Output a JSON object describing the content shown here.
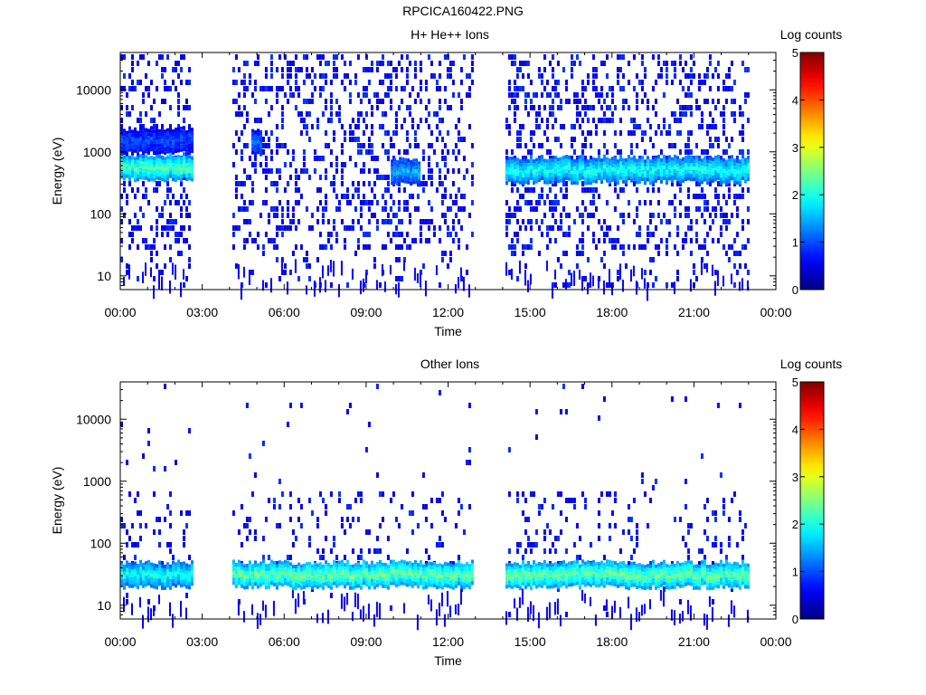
{
  "figure": {
    "title": "RPCICA160422.PNG"
  },
  "chart_data": [
    {
      "type": "heatmap",
      "title": "H+ He++ Ions",
      "xlabel": "Time",
      "ylabel": "Energy (eV)",
      "x_ticks": [
        "00:00",
        "03:00",
        "06:00",
        "09:00",
        "12:00",
        "15:00",
        "18:00",
        "21:00",
        "00:00"
      ],
      "xlim_hours": [
        0,
        24
      ],
      "y_scale": "log",
      "y_ticks": [
        10,
        100,
        1000,
        10000
      ],
      "y_tick_labels": [
        "10",
        "100",
        "1000",
        "10000"
      ],
      "ylim": [
        6,
        40000
      ],
      "colorbar": {
        "label": "Log counts",
        "range": [
          0,
          5
        ],
        "ticks": [
          "0",
          "1",
          "2",
          "3",
          "4",
          "5"
        ],
        "colormap": "jet"
      },
      "data_intervals_hours": [
        [
          0.0,
          2.6
        ],
        [
          4.1,
          12.9
        ],
        [
          14.1,
          23.0
        ]
      ],
      "features": [
        {
          "t_start": 0.0,
          "t_end": 2.6,
          "energy_center_ev": 600,
          "log_counts": 2.3
        },
        {
          "t_start": 0.0,
          "t_end": 2.6,
          "energy_center_ev": 1600,
          "log_counts": 1.0
        },
        {
          "t_start": 4.8,
          "t_end": 5.1,
          "energy_center_ev": 1450,
          "log_counts": 1.2
        },
        {
          "t_start": 9.9,
          "t_end": 10.9,
          "energy_center_ev": 500,
          "log_counts": 1.5
        },
        {
          "t_start": 14.1,
          "t_end": 23.0,
          "energy_center_ev": 550,
          "log_counts": 2.0
        }
      ],
      "grid": false,
      "legend": "colorbar-right"
    },
    {
      "type": "heatmap",
      "title": "Other Ions",
      "xlabel": "Time",
      "ylabel": "Energy (eV)",
      "x_ticks": [
        "00:00",
        "03:00",
        "06:00",
        "09:00",
        "12:00",
        "15:00",
        "18:00",
        "21:00",
        "00:00"
      ],
      "xlim_hours": [
        0,
        24
      ],
      "y_scale": "log",
      "y_ticks": [
        10,
        100,
        1000,
        10000
      ],
      "y_tick_labels": [
        "10",
        "100",
        "1000",
        "10000"
      ],
      "ylim": [
        6,
        40000
      ],
      "colorbar": {
        "label": "Log counts",
        "range": [
          0,
          5
        ],
        "ticks": [
          "0",
          "1",
          "2",
          "3",
          "4",
          "5"
        ],
        "colormap": "jet"
      },
      "data_intervals_hours": [
        [
          0.0,
          2.6
        ],
        [
          4.1,
          12.9
        ],
        [
          14.1,
          23.0
        ]
      ],
      "features": [
        {
          "t_start": 0.0,
          "t_end": 2.6,
          "energy_center_ev": 33,
          "log_counts": 2.0
        },
        {
          "t_start": 4.1,
          "t_end": 12.9,
          "energy_center_ev": 33,
          "log_counts": 2.4
        },
        {
          "t_start": 14.1,
          "t_end": 23.0,
          "energy_center_ev": 33,
          "log_counts": 2.4
        }
      ],
      "grid": false,
      "legend": "colorbar-right"
    }
  ]
}
